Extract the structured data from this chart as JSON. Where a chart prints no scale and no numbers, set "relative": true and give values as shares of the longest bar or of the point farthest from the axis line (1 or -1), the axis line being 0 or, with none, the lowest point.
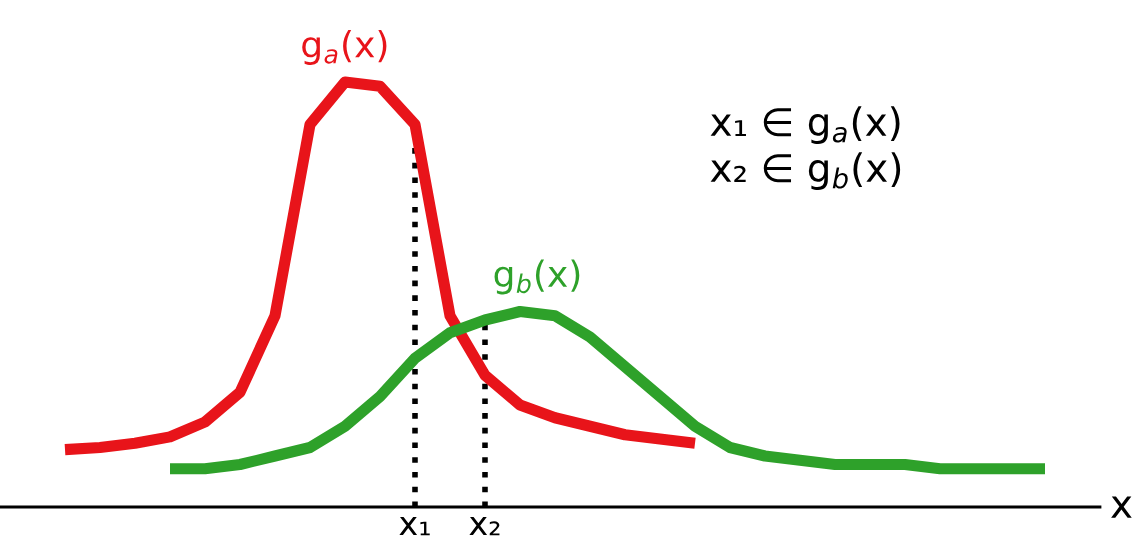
{
  "chart_data": {
    "type": "line",
    "relative": true,
    "xlabel": "x",
    "tick_labels": "x",
    "legend": false,
    "grid": false,
    "line_style": "solid",
    "categories": [
      null,
      null,
      null,
      null,
      null,
      null,
      null,
      null,
      null,
      null,
      null,
      "x₁",
      null,
      "x₂",
      null,
      null,
      null,
      null,
      null,
      null,
      null,
      null,
      null,
      null,
      null,
      null,
      null,
      null,
      null,
      null,
      null
    ],
    "series": [
      {
        "name": "g$_{a}$(x)",
        "color": "#e8141a",
        "values": [
          null,
          0.135,
          0.14,
          0.15,
          0.165,
          0.2,
          0.27,
          0.45,
          0.9,
          1.0,
          0.99,
          0.9,
          0.45,
          0.31,
          0.24,
          0.21,
          0.19,
          0.17,
          0.16,
          0.15,
          null,
          null,
          null,
          null,
          null,
          null,
          null,
          null,
          null,
          null,
          null
        ]
      },
      {
        "name": "g$_{b}$(x)",
        "color": "#2ea12a",
        "values": [
          null,
          null,
          null,
          null,
          0.09,
          0.09,
          0.1,
          0.12,
          0.14,
          0.19,
          0.26,
          0.35,
          0.41,
          0.44,
          0.46,
          0.45,
          0.4,
          0.33,
          0.26,
          0.19,
          0.14,
          0.12,
          0.11,
          0.1,
          0.1,
          0.1,
          0.09,
          0.09,
          0.09,
          0.09,
          null
        ]
      }
    ],
    "ref_lines": [
      {
        "axis": "x",
        "value": "x₁",
        "color": "#000000",
        "line_style": "dotted"
      },
      {
        "axis": "x",
        "value": "x₂",
        "color": "#000000",
        "line_style": "dotted"
      }
    ],
    "annotations": [
      "x₁ ∈ g$_{a}$(x)",
      "x₂ ∈ g$_{b}$(x)"
    ]
  }
}
